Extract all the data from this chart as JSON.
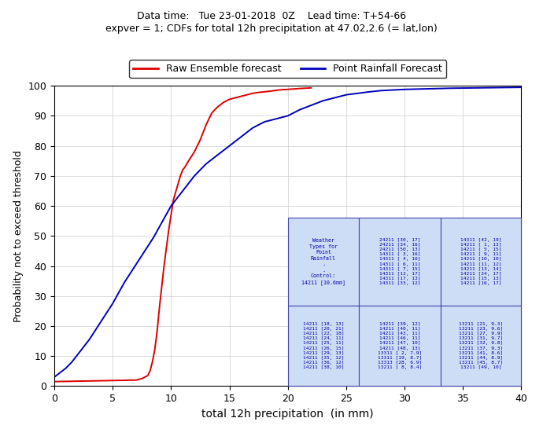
{
  "title_line1": "Data time:   Tue 23-01-2018  0Z    Lead time: T+54-66",
  "title_line2": "expver = 1; CDFs for total 12h precipitation at 47.02,2.6 (= lat,lon)",
  "xlabel": "total 12h precipitation  (in mm)",
  "ylabel": "Probability not to exceed threshold",
  "xlim": [
    0,
    40
  ],
  "ylim": [
    0,
    100
  ],
  "legend_raw": "Raw Ensemble forecast",
  "legend_point": "Point Rainfall Forecast",
  "red_color": "#dd0000",
  "blue_color": "#0000bb",
  "red_x": [
    0.0,
    7.0,
    7.5,
    8.0,
    8.2,
    8.4,
    8.6,
    8.8,
    9.0,
    9.2,
    9.4,
    9.6,
    9.8,
    10.0,
    10.2,
    10.5,
    10.8,
    11.0,
    11.2,
    11.5,
    12.0,
    12.5,
    13.0,
    13.5,
    14.0,
    14.5,
    15.0,
    15.5,
    16.0,
    16.5,
    17.0,
    17.5,
    18.0,
    18.5,
    19.0,
    19.5,
    20.0,
    20.3,
    20.7,
    21.0,
    22.0
  ],
  "red_y": [
    1.5,
    2.0,
    2.5,
    3.5,
    5.0,
    8.0,
    12.0,
    18.0,
    26.0,
    33.0,
    40.0,
    46.0,
    52.0,
    57.0,
    62.0,
    66.0,
    70.0,
    72.0,
    73.0,
    75.0,
    78.0,
    82.0,
    87.0,
    91.0,
    93.0,
    94.5,
    95.5,
    96.0,
    96.5,
    97.0,
    97.5,
    97.8,
    98.0,
    98.2,
    98.5,
    98.7,
    98.8,
    98.9,
    99.0,
    99.1,
    99.3
  ],
  "blue_x": [
    0.0,
    0.5,
    1.0,
    1.5,
    2.0,
    2.5,
    3.0,
    3.5,
    4.0,
    4.5,
    5.0,
    5.5,
    6.0,
    6.5,
    7.0,
    7.5,
    8.0,
    8.5,
    9.0,
    9.5,
    10.0,
    10.5,
    11.0,
    11.5,
    12.0,
    12.5,
    13.0,
    13.5,
    14.0,
    14.5,
    15.0,
    15.5,
    16.0,
    16.5,
    17.0,
    17.5,
    18.0,
    18.5,
    19.0,
    19.5,
    20.0,
    20.5,
    21.0,
    22.0,
    23.0,
    24.0,
    25.0,
    26.0,
    27.0,
    28.0,
    30.0,
    32.0,
    34.0,
    36.0,
    38.0,
    40.0
  ],
  "blue_y": [
    3.0,
    4.5,
    6.0,
    8.0,
    10.5,
    13.0,
    15.5,
    18.5,
    21.5,
    24.5,
    27.5,
    31.0,
    34.5,
    37.5,
    40.5,
    43.5,
    46.5,
    49.5,
    53.0,
    56.5,
    60.0,
    62.5,
    65.0,
    67.5,
    70.0,
    72.0,
    74.0,
    75.5,
    77.0,
    78.5,
    80.0,
    81.5,
    83.0,
    84.5,
    86.0,
    87.0,
    88.0,
    88.5,
    89.0,
    89.5,
    90.0,
    91.0,
    92.0,
    93.5,
    95.0,
    96.0,
    97.0,
    97.5,
    98.0,
    98.4,
    98.8,
    99.0,
    99.2,
    99.3,
    99.4,
    99.5
  ],
  "table_text_0": "Weather\nTypes for\nPoint\nRainfall\n.\n.\nControl:\n14211 [10.6mm]",
  "table_text_1": "24211 [30, 17]\n24211 [34, 16]\n24211 [50, 13]\n14311 [ 3, 16]\n14311 [ 4, 10]\n14311 [ 6, 11]\n14311 [ 7, 15]\n14311 [12, 17]\n14311 [17, 13]\n14311 [33, 12]",
  "table_text_2": "14311 [42, 19]\n14211 [ 1, 13]\n14211 [ 5, 15]\n14211 [ 9, 11]\n14211 [10, 10]\n14211 [11, 12]\n14211 [13, 14]\n14211 [34, 17]\n14211 [15, 13]\n14211 [16, 17]",
  "table_text_3": "14211 [18, 13]\n14211 [20, 21]\n14211 [22, 18]\n14211 [24, 11]\n14211 [25, 11]\n14211 [26, 15]\n14211 [29, 13]\n14211 [35, 12]\n14211 [36, 12]\n14211 [38, 10]",
  "table_text_4": "14211 [39, 12]\n14211 [40, 11]\n14211 [43, 11]\n14211 [46, 11]\n14211 [47, 10]\n14211 [48, 13]\n13311 [ 2, 7.9]\n13311 [19, 8.7]\n13313 [28, 6.9]\n13211 [ 8, 8.4]",
  "table_text_5": "13211 [21, 9.3]\n13211 [23, 9.6]\n13211 [27, 9.9]\n13211 [31, 9.7]\n13211 [32, 9.8]\n13211 [37, 9.3]\n13211 [41, 8.6]\n13211 [44, 8.9]\n13211 [45, 8.7]\n13211 [49, 10]",
  "table_color": "#0000aa",
  "table_bg": "#ccddf5",
  "table_border": "#4444aa",
  "xticks": [
    0,
    5,
    10,
    15,
    20,
    25,
    30,
    35,
    40
  ],
  "yticks": [
    0,
    10,
    20,
    30,
    40,
    50,
    60,
    70,
    80,
    90,
    100
  ],
  "bg_color": "#ffffff"
}
